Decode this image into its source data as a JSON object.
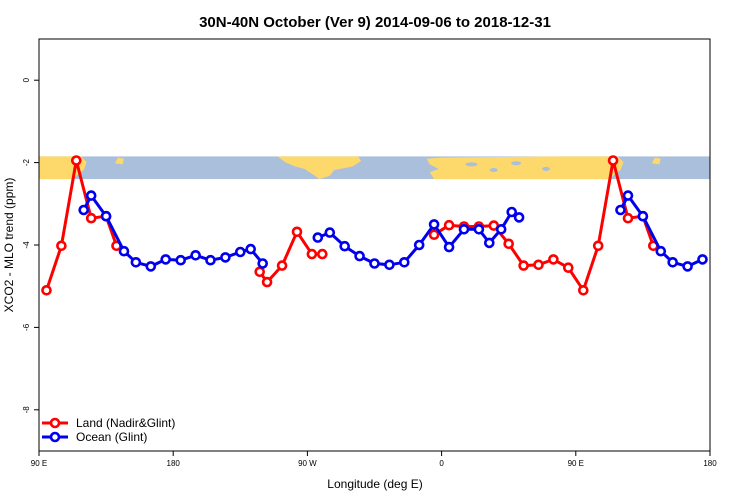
{
  "chart_data": {
    "type": "line",
    "title": "30N-40N October (Ver 9)   2014-09-06 to 2018-12-31",
    "xlabel": "Longitude (deg E)",
    "ylabel": "XCO2 - MLO trend (ppm)",
    "xlim": [
      90,
      540
    ],
    "ylim": [
      -9,
      1
    ],
    "x_ticks": [
      {
        "value": 90,
        "label": "90 E"
      },
      {
        "value": 180,
        "label": "180"
      },
      {
        "value": 270,
        "label": "90 W"
      },
      {
        "value": 360,
        "label": "0"
      },
      {
        "value": 450,
        "label": "90 E"
      },
      {
        "value": 540,
        "label": "180"
      }
    ],
    "y_ticks": [
      {
        "value": 0,
        "label": "0"
      },
      {
        "value": -2,
        "label": "-2"
      },
      {
        "value": -4,
        "label": "-4"
      },
      {
        "value": -6,
        "label": "-6"
      },
      {
        "value": -8,
        "label": "-8"
      }
    ],
    "grid": false,
    "legend_position": "bottom-left",
    "map_band": {
      "y_top": -1.85,
      "y_bottom": -2.4,
      "ocean_color": "#a9bfdc",
      "land_color": "#fdd96c"
    },
    "series": [
      {
        "name": "Land (Nadir&Glint)",
        "color": "#ff0000",
        "segments": [
          [
            [
              95,
              -5.1
            ],
            [
              105,
              -4.02
            ],
            [
              115,
              -1.95
            ],
            [
              125,
              -3.35
            ],
            [
              135,
              -3.3
            ],
            [
              142,
              -4.02
            ]
          ],
          [
            [
              238,
              -4.65
            ],
            [
              243,
              -4.9
            ],
            [
              253,
              -4.5
            ],
            [
              263,
              -3.68
            ],
            [
              273,
              -4.22
            ],
            [
              280,
              -4.22
            ]
          ],
          [
            [
              355,
              -3.75
            ],
            [
              365,
              -3.52
            ],
            [
              375,
              -3.55
            ],
            [
              385,
              -3.55
            ],
            [
              395,
              -3.53
            ],
            [
              405,
              -3.97
            ],
            [
              415,
              -4.5
            ],
            [
              425,
              -4.48
            ],
            [
              435,
              -4.35
            ],
            [
              445,
              -4.55
            ],
            [
              455,
              -5.1
            ],
            [
              465,
              -4.02
            ],
            [
              475,
              -1.95
            ],
            [
              485,
              -3.35
            ],
            [
              495,
              -3.3
            ],
            [
              502,
              -4.02
            ]
          ]
        ]
      },
      {
        "name": "Ocean (Glint)",
        "color": "#0000ee",
        "segments": [
          [
            [
              120,
              -3.15
            ],
            [
              125,
              -2.8
            ],
            [
              135,
              -3.3
            ],
            [
              147,
              -4.15
            ],
            [
              155,
              -4.42
            ],
            [
              165,
              -4.52
            ],
            [
              175,
              -4.35
            ],
            [
              185,
              -4.37
            ],
            [
              195,
              -4.25
            ],
            [
              205,
              -4.37
            ],
            [
              215,
              -4.3
            ],
            [
              225,
              -4.17
            ],
            [
              232,
              -4.1
            ],
            [
              240,
              -4.45
            ]
          ],
          [
            [
              277,
              -3.82
            ],
            [
              285,
              -3.7
            ],
            [
              295,
              -4.03
            ],
            [
              305,
              -4.27
            ],
            [
              315,
              -4.45
            ],
            [
              325,
              -4.48
            ],
            [
              335,
              -4.42
            ],
            [
              345,
              -4.0
            ],
            [
              355,
              -3.5
            ],
            [
              365,
              -4.05
            ],
            [
              375,
              -3.62
            ],
            [
              385,
              -3.62
            ],
            [
              392,
              -3.95
            ],
            [
              400,
              -3.62
            ],
            [
              407,
              -3.2
            ],
            [
              412,
              -3.33
            ]
          ],
          [
            [
              480,
              -3.15
            ],
            [
              485,
              -2.8
            ],
            [
              495,
              -3.3
            ],
            [
              507,
              -4.15
            ],
            [
              515,
              -4.42
            ],
            [
              525,
              -4.52
            ],
            [
              535,
              -4.35
            ]
          ]
        ]
      }
    ]
  }
}
